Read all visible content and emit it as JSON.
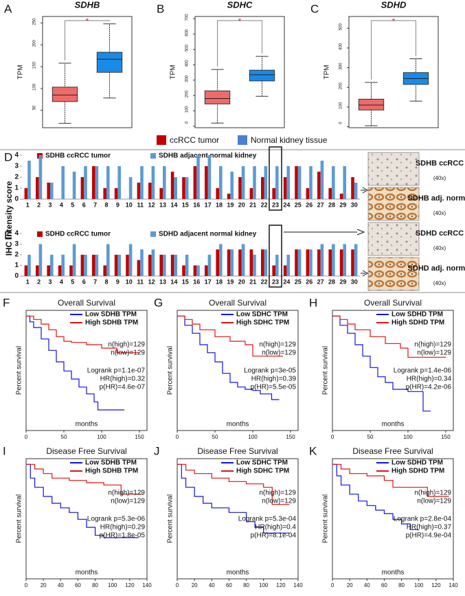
{
  "legend": [
    {
      "name": "ccRCC tumor",
      "color": "#c00000"
    },
    {
      "name": "Normal kidney tissue",
      "color": "#4a7fd4"
    }
  ],
  "ihc_panels": [
    {
      "label": "SDHB ccRCC",
      "mag": "(40x)"
    },
    {
      "label": "SDHB adj. normal",
      "mag": "(40x)"
    },
    {
      "label": "SDHD ccRCC",
      "mag": "(40x)"
    },
    {
      "label": "SDHD adj. normal",
      "mag": "(40x)"
    }
  ],
  "chart_data": [
    {
      "type": "box",
      "label": "A",
      "title": "SDHB",
      "ylabel": "TPM",
      "annotation": "*",
      "ylim": [
        10,
        265
      ],
      "yticks": [
        50,
        100,
        150,
        200,
        250
      ],
      "boxes": [
        {
          "color": "#f06a6a",
          "whislo": 20,
          "q1": 70,
          "med": 85,
          "q3": 103,
          "whishi": 158
        },
        {
          "color": "#1a8ae8",
          "whislo": 78,
          "q1": 137,
          "med": 167,
          "q3": 183,
          "whishi": 248
        }
      ]
    },
    {
      "type": "box",
      "label": "B",
      "title": "SDHC",
      "ylabel": "TPM",
      "annotation": "*",
      "ylim": [
        -10,
        715
      ],
      "yticks": [
        0,
        100,
        200,
        300,
        400,
        500,
        600,
        700
      ],
      "boxes": [
        {
          "color": "#f06a6a",
          "whislo": 20,
          "q1": 145,
          "med": 180,
          "q3": 230,
          "whishi": 370
        },
        {
          "color": "#1a8ae8",
          "whislo": 195,
          "q1": 295,
          "med": 335,
          "q3": 365,
          "whishi": 455
        }
      ]
    },
    {
      "type": "box",
      "label": "C",
      "title": "SDHD",
      "ylabel": "TPM",
      "annotation": "*",
      "ylim": [
        -5,
        560
      ],
      "yticks": [
        0,
        100,
        200,
        300,
        400,
        500
      ],
      "boxes": [
        {
          "color": "#f06a6a",
          "whislo": 5,
          "q1": 85,
          "med": 110,
          "q3": 140,
          "whishi": 225
        },
        {
          "color": "#1a8ae8",
          "whislo": 130,
          "q1": 215,
          "med": 245,
          "q3": 275,
          "whishi": 345
        }
      ]
    },
    {
      "type": "bar",
      "label": "D",
      "ylabel": "IHC Intensity score",
      "ylim": [
        0,
        4
      ],
      "yticks": [
        0,
        1,
        2,
        3,
        4
      ],
      "highlight_category": 23,
      "categories": [
        1,
        2,
        3,
        4,
        5,
        6,
        7,
        8,
        9,
        10,
        11,
        12,
        13,
        14,
        15,
        16,
        17,
        18,
        19,
        20,
        21,
        22,
        23,
        24,
        25,
        26,
        27,
        28,
        29,
        30
      ],
      "series": [
        {
          "name": "SDHB ccRCC tumor",
          "color": "#c00000",
          "values": [
            1,
            2,
            1.5,
            0,
            0,
            2,
            3,
            1,
            1,
            0,
            1.5,
            1.5,
            1,
            2.5,
            2,
            3,
            3,
            1,
            0.5,
            2,
            1,
            2,
            1,
            2,
            3,
            1,
            2.5,
            1,
            0.5,
            2
          ]
        },
        {
          "name": "SDHB adjacent normal kidney",
          "color": "#5b9bd5",
          "values": [
            3.5,
            4,
            1.5,
            3,
            2.5,
            3,
            3,
            3,
            3,
            2,
            3,
            3,
            3,
            2,
            2,
            4,
            4,
            3,
            2.5,
            3,
            3,
            3,
            3,
            3,
            3,
            3,
            3.5,
            3,
            3,
            1.5
          ]
        }
      ]
    },
    {
      "type": "bar",
      "label": "E",
      "ylim": [
        0,
        4
      ],
      "yticks": [
        0,
        1,
        2,
        3,
        4
      ],
      "highlight_category": 23,
      "categories": [
        1,
        2,
        3,
        4,
        5,
        6,
        7,
        8,
        9,
        10,
        11,
        12,
        13,
        14,
        15,
        16,
        17,
        18,
        19,
        20,
        21,
        22,
        23,
        24,
        25,
        26,
        27,
        28,
        29,
        30
      ],
      "series": [
        {
          "name": "SDHD ccRCC tumor",
          "color": "#c00000",
          "values": [
            1,
            1,
            1,
            1,
            1,
            2,
            2,
            1,
            2,
            2,
            1.5,
            2,
            2,
            2,
            1,
            1,
            1,
            2.5,
            2.5,
            2.5,
            2.5,
            2.5,
            1,
            1,
            2.5,
            2.5,
            2.5,
            2.5,
            2.5,
            2.5
          ]
        },
        {
          "name": "SDHD adjacent normal kidney",
          "color": "#5b9bd5",
          "values": [
            2,
            3,
            2,
            2,
            3,
            2,
            2,
            3,
            2,
            3,
            2.5,
            2.5,
            2,
            2,
            2,
            1,
            2,
            3,
            2.5,
            3,
            2,
            2.5,
            2,
            2,
            2.5,
            2.5,
            3,
            3,
            3,
            3
          ]
        }
      ]
    },
    {
      "type": "km",
      "label": "F",
      "title": "Overall Survival",
      "xlabel": "months",
      "ylabel": "Percent survival",
      "xlim": [
        0,
        160
      ],
      "xticks": [
        0,
        50,
        100,
        150
      ],
      "ylim": [
        0,
        1.05
      ],
      "series": [
        {
          "name": "Low SDHB TPM",
          "color": "#1010e0",
          "x": [
            0,
            5,
            10,
            20,
            30,
            40,
            50,
            60,
            70,
            80,
            90,
            95,
            130
          ],
          "values": [
            1,
            0.95,
            0.9,
            0.8,
            0.7,
            0.6,
            0.52,
            0.45,
            0.38,
            0.32,
            0.25,
            0.18,
            0.18
          ]
        },
        {
          "name": "High SDHB TPM",
          "color": "#e01010",
          "x": [
            0,
            10,
            20,
            30,
            40,
            50,
            60,
            80,
            100,
            120,
            150
          ],
          "values": [
            1,
            0.97,
            0.93,
            0.88,
            0.82,
            0.78,
            0.77,
            0.75,
            0.72,
            0.68,
            0.68
          ]
        }
      ],
      "annotations": [
        "n(high)=129",
        "n(low)=129",
        "Logrank p=1.1e-07",
        "HR(high)=0.32",
        "p(HR)=4.6e-07"
      ]
    },
    {
      "type": "km",
      "label": "G",
      "title": "Overall Survival",
      "xlabel": "months",
      "ylabel": "Percent survival",
      "xlim": [
        0,
        160
      ],
      "xticks": [
        0,
        50,
        100,
        150
      ],
      "ylim": [
        0,
        1.05
      ],
      "series": [
        {
          "name": "Low SDHC TPM",
          "color": "#1010e0",
          "x": [
            0,
            10,
            20,
            30,
            40,
            50,
            60,
            70,
            80,
            90,
            100,
            110,
            125,
            135
          ],
          "values": [
            1,
            0.92,
            0.85,
            0.75,
            0.68,
            0.6,
            0.5,
            0.42,
            0.38,
            0.36,
            0.35,
            0.32,
            0.27,
            0.27
          ]
        },
        {
          "name": "High SDHC TPM",
          "color": "#e01010",
          "x": [
            0,
            10,
            20,
            30,
            50,
            70,
            90,
            100,
            140
          ],
          "values": [
            1,
            0.97,
            0.93,
            0.88,
            0.82,
            0.78,
            0.75,
            0.65,
            0.65
          ]
        }
      ],
      "annotations": [
        "n(high)=129",
        "n(low)=129",
        "Logrank p=3e-05",
        "HR(high)=0.39",
        "p(HR)=5.5e-05"
      ]
    },
    {
      "type": "km",
      "label": "H",
      "title": "Overall Survival",
      "xlabel": "months",
      "ylabel": "Percent survival",
      "xlim": [
        0,
        160
      ],
      "xticks": [
        0,
        50,
        100,
        150
      ],
      "ylim": [
        0,
        1.05
      ],
      "series": [
        {
          "name": "Low SDHD TPM",
          "color": "#1010e0",
          "x": [
            0,
            10,
            20,
            30,
            40,
            50,
            60,
            70,
            80,
            100,
            115,
            120,
            130
          ],
          "values": [
            1,
            0.92,
            0.85,
            0.75,
            0.65,
            0.55,
            0.47,
            0.42,
            0.36,
            0.34,
            0.34,
            0.17,
            0.17
          ]
        },
        {
          "name": "High SDHD TPM",
          "color": "#e01010",
          "x": [
            0,
            10,
            20,
            30,
            50,
            70,
            90,
            100,
            150
          ],
          "values": [
            1,
            0.97,
            0.93,
            0.88,
            0.82,
            0.76,
            0.72,
            0.64,
            0.64
          ]
        }
      ],
      "annotations": [
        "n(high)=129",
        "n(low)=129",
        "Logrank p=1.4e-06",
        "HR(high)=0.34",
        "p(HR)=4.2e-06"
      ]
    },
    {
      "type": "km",
      "label": "I",
      "title": "Disease Free Survival",
      "xlabel": "months",
      "ylabel": "Percent survival",
      "xlim": [
        0,
        140
      ],
      "xticks": [
        0,
        20,
        40,
        60,
        80,
        100,
        120,
        140
      ],
      "ylim": [
        0,
        1.05
      ],
      "series": [
        {
          "name": "Low SDHB TPM",
          "color": "#1010e0",
          "x": [
            0,
            5,
            10,
            20,
            30,
            40,
            50,
            60,
            70,
            80,
            90,
            130
          ],
          "values": [
            1,
            0.88,
            0.8,
            0.72,
            0.66,
            0.62,
            0.58,
            0.52,
            0.45,
            0.38,
            0.36,
            0.36
          ]
        },
        {
          "name": "High SDHB TPM",
          "color": "#e01010",
          "x": [
            0,
            10,
            20,
            30,
            50,
            70,
            90,
            110,
            135
          ],
          "values": [
            1,
            0.96,
            0.92,
            0.88,
            0.86,
            0.84,
            0.82,
            0.74,
            0.74
          ]
        }
      ],
      "annotations": [
        "n(high)=129",
        "n(low)=129",
        "Logrank p=5.3e-06",
        "HR(high)=0.29",
        "p(HR)=1.8e-05"
      ]
    },
    {
      "type": "km",
      "label": "J",
      "title": "Disease Free Survival",
      "xlabel": "months",
      "ylabel": "Percent survival",
      "xlim": [
        0,
        140
      ],
      "xticks": [
        0,
        20,
        40,
        60,
        80,
        100,
        120,
        140
      ],
      "ylim": [
        0,
        1.05
      ],
      "series": [
        {
          "name": "Low SDHC TPM",
          "color": "#1010e0",
          "x": [
            0,
            5,
            10,
            20,
            30,
            40,
            60,
            80,
            90,
            100,
            130
          ],
          "values": [
            1,
            0.88,
            0.8,
            0.72,
            0.66,
            0.62,
            0.58,
            0.5,
            0.45,
            0.4,
            0.4
          ]
        },
        {
          "name": "High SDHC TPM",
          "color": "#e01010",
          "x": [
            0,
            10,
            20,
            40,
            60,
            80,
            100,
            110,
            130
          ],
          "values": [
            1,
            0.95,
            0.92,
            0.88,
            0.85,
            0.83,
            0.8,
            0.65,
            0.65
          ]
        }
      ],
      "annotations": [
        "n(high)=129",
        "n(low)=129",
        "Logrank p=5.3e-04",
        "HR(high)=0.4",
        "p(HR)=8.1e-04"
      ]
    },
    {
      "type": "km",
      "label": "K",
      "title": "Disease Free Survival",
      "xlabel": "months",
      "ylabel": "Percent survival",
      "xlim": [
        0,
        140
      ],
      "xticks": [
        0,
        20,
        40,
        60,
        80,
        100,
        120,
        140
      ],
      "ylim": [
        0,
        1.05
      ],
      "series": [
        {
          "name": "Low SDHD TPM",
          "color": "#1010e0",
          "x": [
            0,
            5,
            10,
            20,
            30,
            40,
            50,
            60,
            70,
            80,
            90,
            100
          ],
          "values": [
            1,
            0.9,
            0.82,
            0.74,
            0.68,
            0.64,
            0.6,
            0.57,
            0.52,
            0.48,
            0.43,
            0.43
          ]
        },
        {
          "name": "High SDHD TPM",
          "color": "#e01010",
          "x": [
            0,
            10,
            20,
            40,
            60,
            70,
            90,
            110,
            135
          ],
          "values": [
            1,
            0.96,
            0.92,
            0.9,
            0.86,
            0.8,
            0.8,
            0.72,
            0.72
          ]
        }
      ],
      "annotations": [
        "n(high)=129",
        "n(low)=129",
        "Logrank p=2.8e-04",
        "HR(high)=0.37",
        "p(HR)=4.9e-04"
      ]
    }
  ]
}
